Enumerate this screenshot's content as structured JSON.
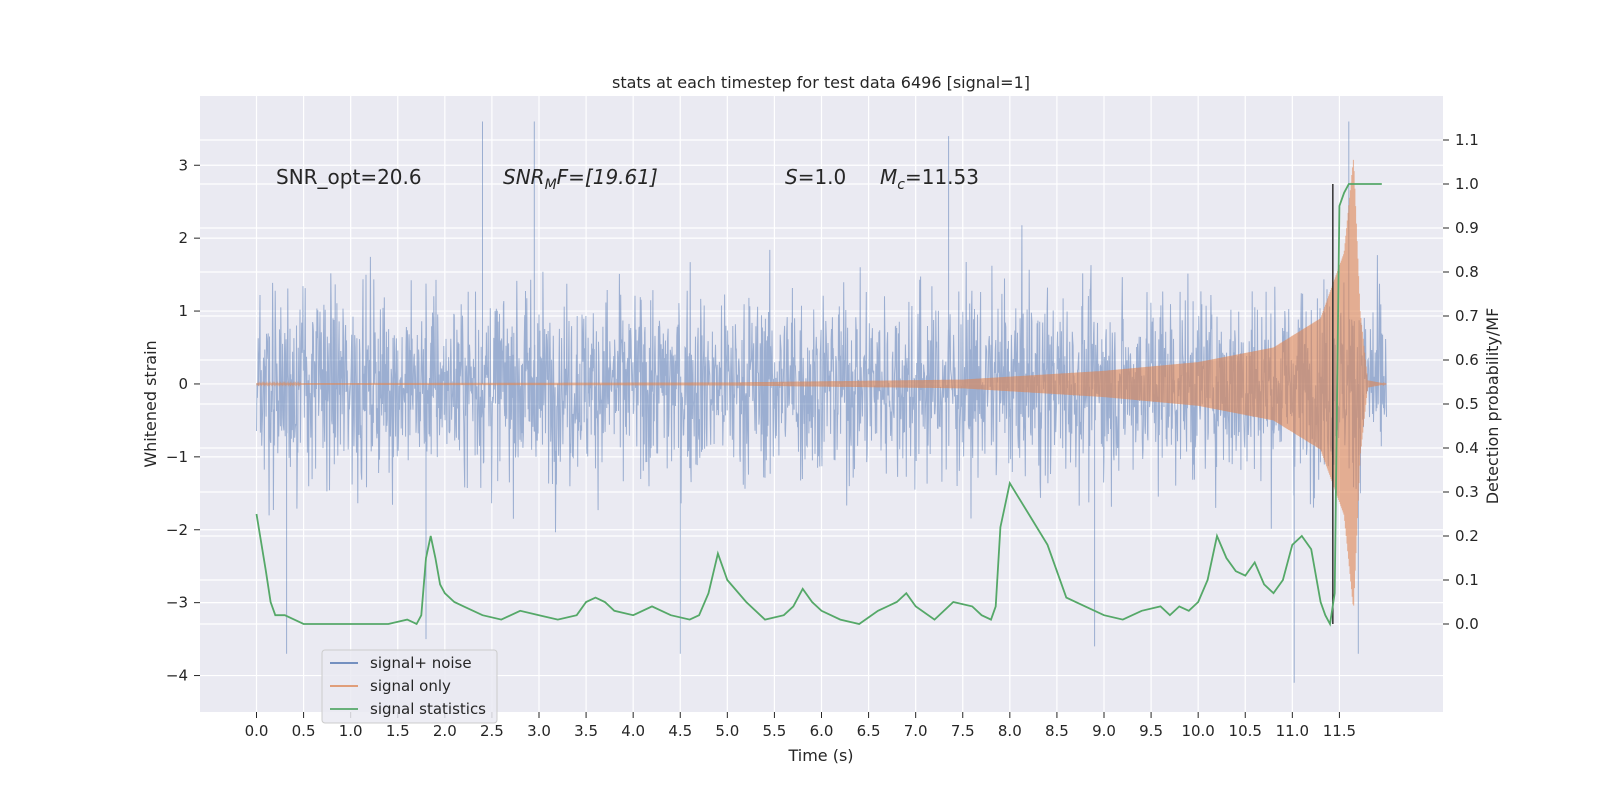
{
  "chart_data": {
    "type": "line",
    "title": "stats at each timestep for test data 6496 [signal=1]",
    "xlabel": "Time (s)",
    "ylabel": "Whitened strain",
    "y2label": "Detection probability/MF",
    "xlim": [
      -0.6,
      12.6
    ],
    "ylim": [
      -4.5,
      3.95
    ],
    "y2lim": [
      -0.2,
      1.2
    ],
    "x_ticks": [
      0.0,
      0.5,
      1.0,
      1.5,
      2.0,
      2.5,
      3.0,
      3.5,
      4.0,
      4.5,
      5.0,
      5.5,
      6.0,
      6.5,
      7.0,
      7.5,
      8.0,
      8.5,
      9.0,
      9.5,
      10.0,
      10.5,
      11.0,
      11.5
    ],
    "x_tick_labels": [
      "0.0",
      "0.5",
      "1.0",
      "1.5",
      "2.0",
      "2.5",
      "3.0",
      "3.5",
      "4.0",
      "4.5",
      "5.0",
      "5.5",
      "6.0",
      "6.5",
      "7.0",
      "7.5",
      "8.0",
      "8.5",
      "9.0",
      "9.5",
      "10.0",
      "10.5",
      "11.0",
      "11.5"
    ],
    "y_ticks": [
      -4,
      -3,
      -2,
      -1,
      0,
      1,
      2,
      3
    ],
    "y_tick_labels": [
      "−4",
      "−3",
      "−2",
      "−1",
      "0",
      "1",
      "2",
      "3"
    ],
    "y2_ticks": [
      0.0,
      0.1,
      0.2,
      0.3,
      0.4,
      0.5,
      0.6,
      0.7,
      0.8,
      0.9,
      1.0,
      1.1
    ],
    "y2_tick_labels": [
      "0.0",
      "0.1",
      "0.2",
      "0.3",
      "0.4",
      "0.5",
      "0.6",
      "0.7",
      "0.8",
      "0.9",
      "1.0",
      "1.1"
    ],
    "grid": true,
    "legend_placement": "lower-left",
    "annotations": {
      "snr_opt": "SNR_opt=20.6",
      "snr_mf_main": "SNR",
      "snr_mf_sub": "M",
      "snr_mf_rest": "F=[19.61]",
      "s_main": "S",
      "s_rest": "=1.0",
      "mc_main": "M",
      "mc_sub": "c",
      "mc_rest": "=11.53"
    },
    "merger_marker": {
      "x": 11.43,
      "y2_from": 0.0,
      "y2_to": 1.0
    },
    "series": [
      {
        "name": "signal+ noise",
        "color": "#4c72b0",
        "axis": "left",
        "x_range": [
          0.0,
          12.0
        ],
        "envelope_typical": [
          -2.2,
          2.2
        ],
        "peaks": [
          {
            "x": 0.32,
            "y": -3.7
          },
          {
            "x": 1.8,
            "y": -3.5
          },
          {
            "x": 2.4,
            "y": 3.6
          },
          {
            "x": 2.95,
            "y": 3.6
          },
          {
            "x": 4.5,
            "y": -3.7
          },
          {
            "x": 7.35,
            "y": 3.4
          },
          {
            "x": 8.9,
            "y": -3.6
          },
          {
            "x": 11.02,
            "y": -4.1
          },
          {
            "x": 11.7,
            "y": -3.7
          },
          {
            "x": 11.6,
            "y": 3.6
          }
        ]
      },
      {
        "name": "signal only",
        "color": "#dd8452",
        "axis": "left",
        "x_range": [
          0.0,
          12.0
        ],
        "envelope": [
          {
            "x": 0.0,
            "amp": 0.01
          },
          {
            "x": 5.0,
            "amp": 0.02
          },
          {
            "x": 7.5,
            "amp": 0.06
          },
          {
            "x": 9.0,
            "amp": 0.18
          },
          {
            "x": 10.0,
            "amp": 0.3
          },
          {
            "x": 10.8,
            "amp": 0.5
          },
          {
            "x": 11.3,
            "amp": 0.9
          },
          {
            "x": 11.55,
            "amp": 1.8
          },
          {
            "x": 11.65,
            "amp": 3.1
          },
          {
            "x": 11.72,
            "amp": 1.0
          },
          {
            "x": 11.8,
            "amp": 0.05
          },
          {
            "x": 12.0,
            "amp": 0.0
          }
        ]
      },
      {
        "name": "signal statistics",
        "color": "#55a868",
        "axis": "right",
        "x": [
          0.0,
          0.1,
          0.15,
          0.2,
          0.3,
          0.4,
          0.5,
          0.6,
          0.8,
          1.0,
          1.2,
          1.4,
          1.6,
          1.7,
          1.75,
          1.8,
          1.85,
          1.9,
          1.95,
          2.0,
          2.1,
          2.2,
          2.4,
          2.6,
          2.7,
          2.8,
          3.0,
          3.2,
          3.4,
          3.5,
          3.6,
          3.7,
          3.8,
          4.0,
          4.2,
          4.4,
          4.6,
          4.7,
          4.8,
          4.9,
          5.0,
          5.2,
          5.4,
          5.6,
          5.7,
          5.8,
          5.9,
          6.0,
          6.2,
          6.4,
          6.6,
          6.8,
          6.9,
          7.0,
          7.2,
          7.4,
          7.6,
          7.7,
          7.8,
          7.85,
          7.9,
          8.0,
          8.2,
          8.4,
          8.6,
          8.8,
          9.0,
          9.2,
          9.4,
          9.6,
          9.7,
          9.8,
          9.9,
          10.0,
          10.1,
          10.2,
          10.3,
          10.4,
          10.5,
          10.6,
          10.7,
          10.8,
          10.9,
          11.0,
          11.1,
          11.2,
          11.3,
          11.35,
          11.4,
          11.45,
          11.5,
          11.55,
          11.6,
          11.7,
          11.8,
          11.9,
          11.95
        ],
        "values": [
          0.25,
          0.12,
          0.05,
          0.02,
          0.02,
          0.01,
          0.0,
          0.0,
          0.0,
          0.0,
          0.0,
          0.0,
          0.01,
          0.0,
          0.02,
          0.15,
          0.2,
          0.15,
          0.09,
          0.07,
          0.05,
          0.04,
          0.02,
          0.01,
          0.02,
          0.03,
          0.02,
          0.01,
          0.02,
          0.05,
          0.06,
          0.05,
          0.03,
          0.02,
          0.04,
          0.02,
          0.01,
          0.02,
          0.07,
          0.16,
          0.1,
          0.05,
          0.01,
          0.02,
          0.04,
          0.08,
          0.05,
          0.03,
          0.01,
          0.0,
          0.03,
          0.05,
          0.07,
          0.04,
          0.01,
          0.05,
          0.04,
          0.02,
          0.01,
          0.04,
          0.22,
          0.32,
          0.25,
          0.18,
          0.06,
          0.04,
          0.02,
          0.01,
          0.03,
          0.04,
          0.02,
          0.04,
          0.03,
          0.05,
          0.1,
          0.2,
          0.15,
          0.12,
          0.11,
          0.14,
          0.09,
          0.07,
          0.1,
          0.18,
          0.2,
          0.17,
          0.05,
          0.02,
          0.0,
          0.07,
          0.95,
          0.98,
          1.0,
          1.0,
          1.0,
          1.0,
          1.0
        ]
      }
    ]
  }
}
